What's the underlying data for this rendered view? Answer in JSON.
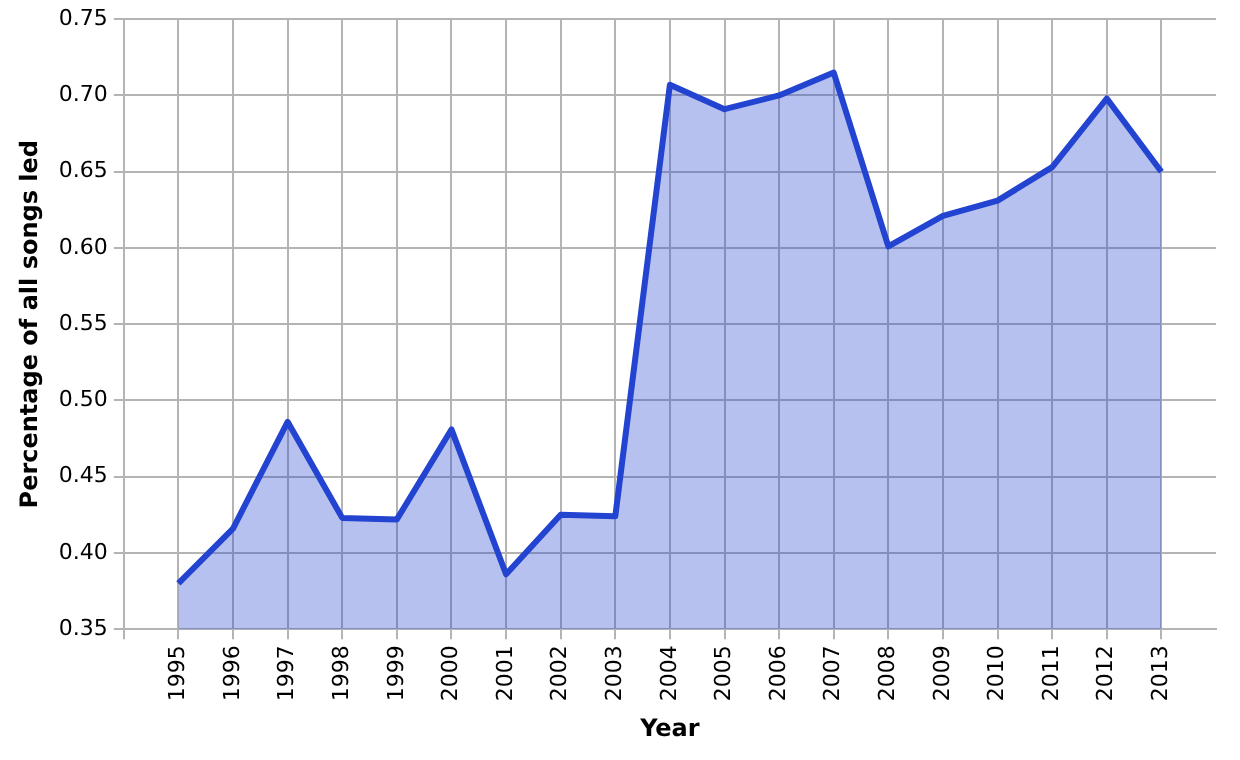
{
  "chart_data": {
    "type": "area",
    "xlabel": "Year",
    "ylabel": "Percentage of all songs led",
    "x": [
      1995,
      1996,
      1997,
      1998,
      1999,
      2000,
      2001,
      2002,
      2003,
      2004,
      2005,
      2006,
      2007,
      2008,
      2009,
      2010,
      2011,
      2012,
      2013
    ],
    "series": [
      {
        "color": "#2344d0",
        "values": [
          0.38,
          0.416,
          0.486,
          0.423,
          0.422,
          0.481,
          0.386,
          0.425,
          0.424,
          0.707,
          0.691,
          0.7,
          0.715,
          0.601,
          0.621,
          0.631,
          0.653,
          0.698,
          0.65
        ]
      }
    ],
    "xlim": [
      1994,
      2014
    ],
    "xticks": [
      {
        "value": 1994,
        "label": null
      },
      1995,
      1996,
      1997,
      1998,
      1999,
      2000,
      2001,
      2002,
      2003,
      2004,
      2005,
      2006,
      2007,
      2008,
      2009,
      2010,
      2011,
      2012,
      2013
    ],
    "ylim": [
      0.35,
      0.75
    ],
    "yticks": [
      {
        "value": 0.35,
        "label": "0.35"
      },
      {
        "value": 0.4,
        "label": "0.40"
      },
      {
        "value": 0.45,
        "label": "0.45"
      },
      {
        "value": 0.5,
        "label": "0.50"
      },
      {
        "value": 0.55,
        "label": "0.55"
      },
      {
        "value": 0.6,
        "label": "0.60"
      },
      {
        "value": 0.65,
        "label": "0.65"
      },
      {
        "value": 0.7,
        "label": "0.70"
      },
      {
        "value": 0.75,
        "label": "0.75"
      }
    ],
    "grid": true,
    "legend": false,
    "marker": "none",
    "line_style": "solid"
  }
}
